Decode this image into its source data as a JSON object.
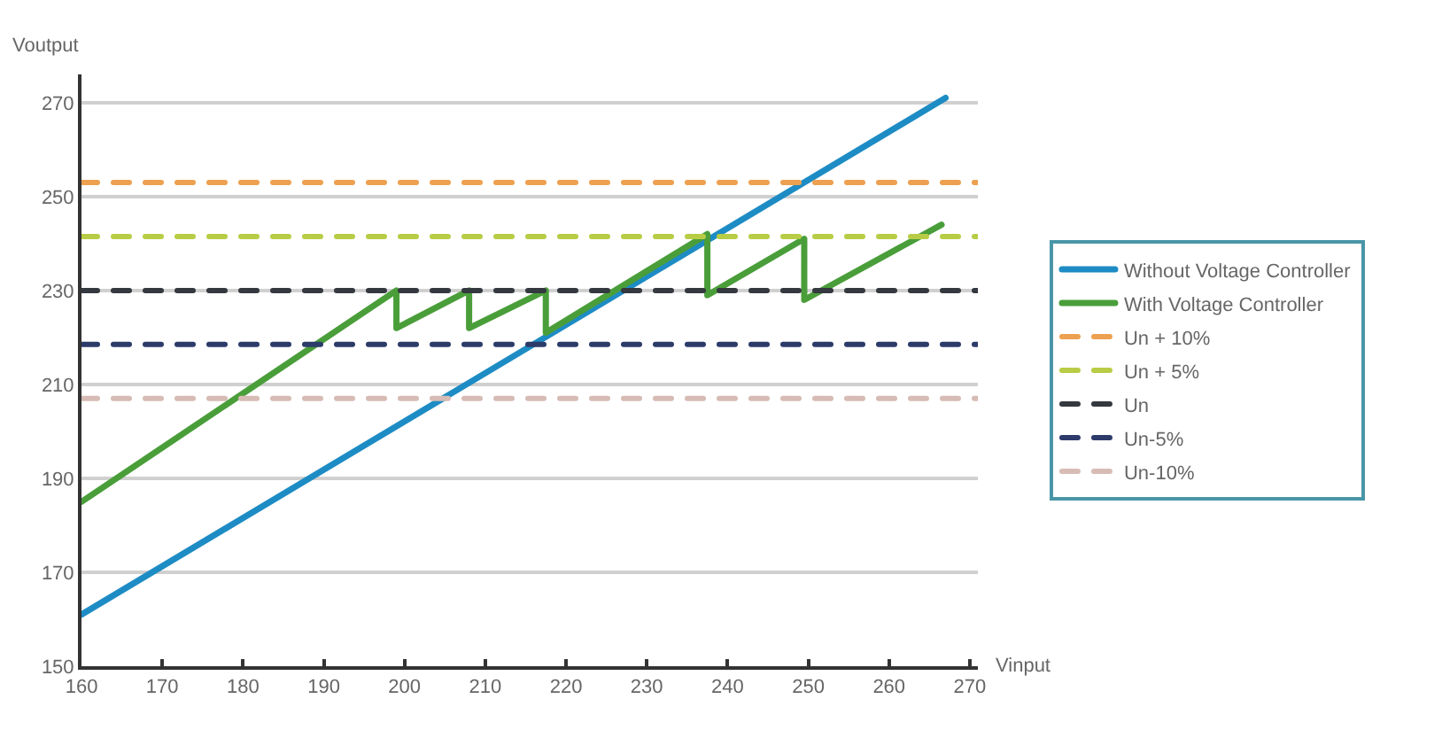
{
  "chart_data": {
    "type": "line",
    "xlabel": "Vinput",
    "ylabel": "Voutput",
    "xlim": [
      160,
      271
    ],
    "xticks": [
      160,
      170,
      180,
      190,
      200,
      210,
      220,
      230,
      240,
      250,
      260,
      270
    ],
    "ylim": [
      150,
      276
    ],
    "yticks": [
      150,
      170,
      190,
      210,
      230,
      250,
      270
    ],
    "grid": "y",
    "legend": "right",
    "marker": "none",
    "series": [
      {
        "name": "Without Voltage Controller",
        "color": "#1e8cc4",
        "x": [
          160,
          267
        ],
        "values": [
          161,
          271
        ]
      },
      {
        "name": "With Voltage Controller",
        "color": "#4a9e3a",
        "x": [
          160,
          199,
          199,
          208,
          208,
          217.5,
          217.5,
          237.5,
          237.5,
          249.5,
          249.5,
          266.5
        ],
        "values": [
          185,
          230,
          222,
          230,
          222,
          230,
          221,
          242,
          229,
          241,
          228,
          244
        ]
      }
    ],
    "ref_lines": [
      {
        "axis": "y",
        "value": 253,
        "label": "Un + 10%",
        "color": "#eda050",
        "line_style": "dashed"
      },
      {
        "axis": "y",
        "value": 241.5,
        "label": "Un + 5%",
        "color": "#b9cc45",
        "line_style": "dashed"
      },
      {
        "axis": "y",
        "value": 230,
        "label": "Un",
        "color": "#34383f",
        "line_style": "dashed"
      },
      {
        "axis": "y",
        "value": 218.5,
        "label": "Un-5%",
        "color": "#2c3b6a",
        "line_style": "dashed"
      },
      {
        "axis": "y",
        "value": 207,
        "label": "Un-10%",
        "color": "#d6bcb4",
        "line_style": "dashed"
      }
    ]
  }
}
